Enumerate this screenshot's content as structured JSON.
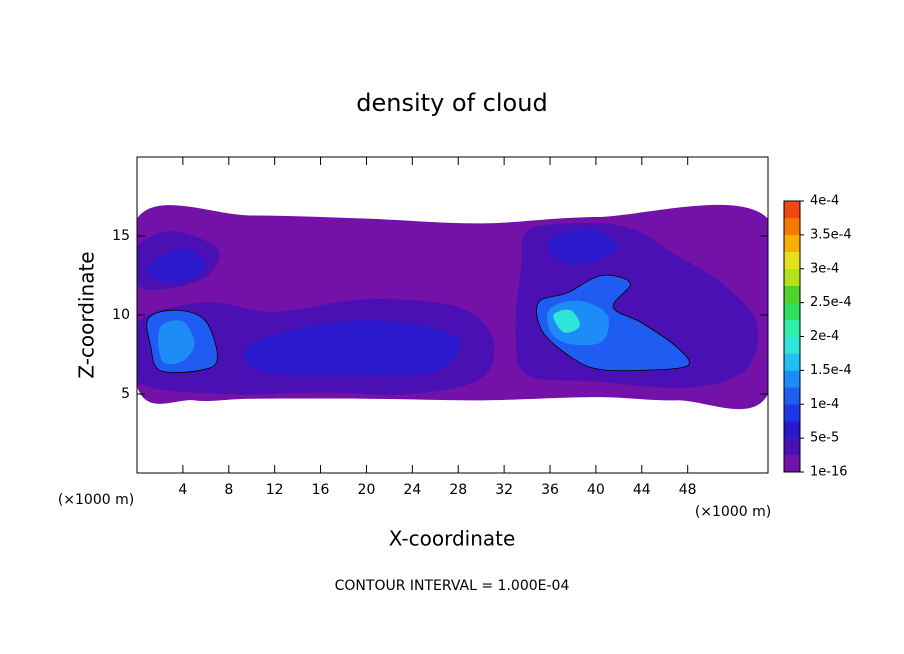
{
  "chart_data": {
    "type": "contour",
    "title": "density of cloud",
    "x_label": "X-coordinate",
    "y_label": "Z-coordinate",
    "x_unit": "(×1000 m)",
    "footnote": "CONTOUR INTERVAL = 1.000E-04",
    "xlim": [
      0,
      55
    ],
    "ylim": [
      0,
      20
    ],
    "xticks": [
      4,
      8,
      12,
      16,
      20,
      24,
      28,
      32,
      36,
      40,
      44,
      48
    ],
    "yticks": [
      5,
      10,
      15
    ],
    "contour_level": 0.0001,
    "colorbar": {
      "ticks": [
        {
          "value": 1e-16,
          "label": "1e-16"
        },
        {
          "value": 5e-05,
          "label": "5e-5"
        },
        {
          "value": 0.0001,
          "label": "1e-4"
        },
        {
          "value": 0.00015,
          "label": "1.5e-4"
        },
        {
          "value": 0.0002,
          "label": "2e-4"
        },
        {
          "value": 0.00025,
          "label": "2.5e-4"
        },
        {
          "value": 0.0003,
          "label": "3e-4"
        },
        {
          "value": 0.00035,
          "label": "3.5e-4"
        },
        {
          "value": 0.0004,
          "label": "4e-4"
        }
      ],
      "colors": [
        "#7311a8",
        "#4a10b4",
        "#2a18cc",
        "#1f36e6",
        "#1e5cf2",
        "#1e8cf6",
        "#24bff2",
        "#2ee6d8",
        "#2ff0a8",
        "#2fe060",
        "#52d22a",
        "#b4e21c",
        "#e8e01c",
        "#f5b000",
        "#f57a00",
        "#f04810",
        "#f02020",
        "#f47070"
      ]
    },
    "regions": [
      {
        "value": 1e-16,
        "points": [
          [
            0,
            16.1
          ],
          [
            10,
            16.3
          ],
          [
            20,
            16.1
          ],
          [
            30,
            15.8
          ],
          [
            40,
            16.2
          ],
          [
            55,
            16.1
          ],
          [
            55,
            5
          ],
          [
            47,
            4.6
          ],
          [
            40,
            4.8
          ],
          [
            30,
            4.6
          ],
          [
            20,
            4.7
          ],
          [
            10,
            4.7
          ],
          [
            5,
            4.6
          ],
          [
            0,
            5.5
          ]
        ]
      },
      {
        "value": 3e-05,
        "points": [
          [
            0,
            14.3
          ],
          [
            3,
            15.3
          ],
          [
            7,
            14.2
          ],
          [
            6,
            12.4
          ],
          [
            2,
            11.6
          ],
          [
            0,
            12
          ]
        ]
      },
      {
        "value": 3e-05,
        "points": [
          [
            0,
            9.5
          ],
          [
            6,
            10.8
          ],
          [
            12,
            10.2
          ],
          [
            20,
            11
          ],
          [
            28,
            10.5
          ],
          [
            31,
            8.5
          ],
          [
            30,
            6
          ],
          [
            24,
            5
          ],
          [
            16,
            5.1
          ],
          [
            8,
            5
          ],
          [
            0,
            5.8
          ]
        ]
      },
      {
        "value": 3e-05,
        "points": [
          [
            34,
            15.3
          ],
          [
            38,
            15.8
          ],
          [
            43,
            15.5
          ],
          [
            47,
            13.8
          ],
          [
            51,
            12
          ],
          [
            54,
            9.5
          ],
          [
            53,
            6.5
          ],
          [
            48,
            5.4
          ],
          [
            40,
            5.8
          ],
          [
            34,
            6.2
          ],
          [
            33,
            9
          ],
          [
            33.5,
            13
          ]
        ]
      },
      {
        "value": 6e-05,
        "points": [
          [
            1,
            13.2
          ],
          [
            4,
            14.2
          ],
          [
            6,
            13.2
          ],
          [
            4.5,
            12.2
          ],
          [
            1.5,
            12.3
          ]
        ]
      },
      {
        "value": 6e-05,
        "points": [
          [
            36,
            14.8
          ],
          [
            39.5,
            15.4
          ],
          [
            42,
            14.3
          ],
          [
            39,
            13.2
          ],
          [
            36.5,
            13.6
          ]
        ]
      },
      {
        "value": 6e-05,
        "points": [
          [
            10,
            8.2
          ],
          [
            16,
            9.4
          ],
          [
            22,
            9.6
          ],
          [
            28,
            8.5
          ],
          [
            26,
            6.4
          ],
          [
            19,
            6.2
          ],
          [
            12,
            6.3
          ],
          [
            9.5,
            7
          ]
        ]
      },
      {
        "value": 0.00011,
        "points": [
          [
            1,
            9.8
          ],
          [
            3.5,
            10.3
          ],
          [
            6,
            9.6
          ],
          [
            7,
            7.2
          ],
          [
            5.5,
            6.5
          ],
          [
            2,
            6.5
          ],
          [
            1.2,
            8
          ]
        ]
      },
      {
        "value": 0.00011,
        "points": [
          [
            35,
            10.8
          ],
          [
            37.5,
            11.4
          ],
          [
            40.5,
            12.5
          ],
          [
            43,
            12
          ],
          [
            41.5,
            10.5
          ],
          [
            44,
            9.5
          ],
          [
            47,
            8
          ],
          [
            48,
            6.8
          ],
          [
            44,
            6.5
          ],
          [
            40,
            6.6
          ],
          [
            37.5,
            7.5
          ],
          [
            35.3,
            9
          ]
        ]
      },
      {
        "value": 0.00014,
        "points": [
          [
            2,
            9.2
          ],
          [
            4,
            9.6
          ],
          [
            5,
            8.2
          ],
          [
            4,
            7.1
          ],
          [
            2.2,
            7.1
          ]
        ]
      },
      {
        "value": 0.00014,
        "points": [
          [
            36,
            10.4
          ],
          [
            38.5,
            10.9
          ],
          [
            41,
            10
          ],
          [
            40.5,
            8.3
          ],
          [
            37.5,
            8.2
          ],
          [
            36,
            9
          ]
        ]
      },
      {
        "value": 0.00018,
        "points": [
          [
            36.3,
            10
          ],
          [
            37.8,
            10.3
          ],
          [
            38.6,
            9.3
          ],
          [
            37.2,
            8.9
          ]
        ]
      }
    ]
  }
}
